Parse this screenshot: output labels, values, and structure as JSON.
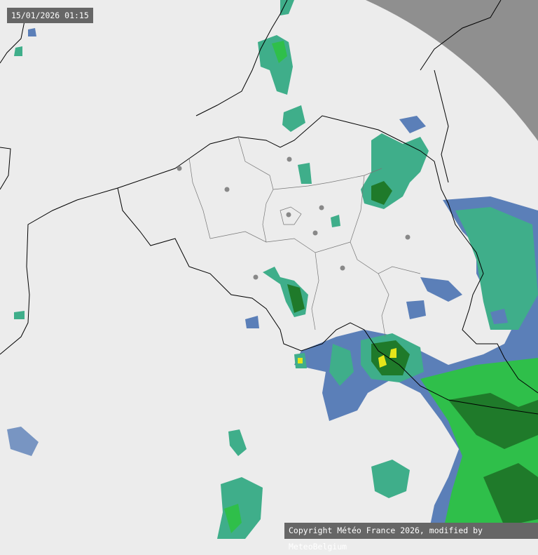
{
  "map": {
    "timestamp": "15/01/2026 01:15",
    "copyright": "Copyright Météo France 2026, modified by MeteoBelgium",
    "colors": {
      "background": "#ececec",
      "out_of_range": "#8f8f8f",
      "light_rain": "#5b7fb8",
      "moderate_rain": "#3fae8a",
      "rain": "#2fbf4a",
      "heavy_rain": "#1f7a2a",
      "very_heavy_rain": "#e5e51a",
      "border_line": "#000000",
      "province_line": "#777777",
      "city_marker": "#888888"
    }
  }
}
